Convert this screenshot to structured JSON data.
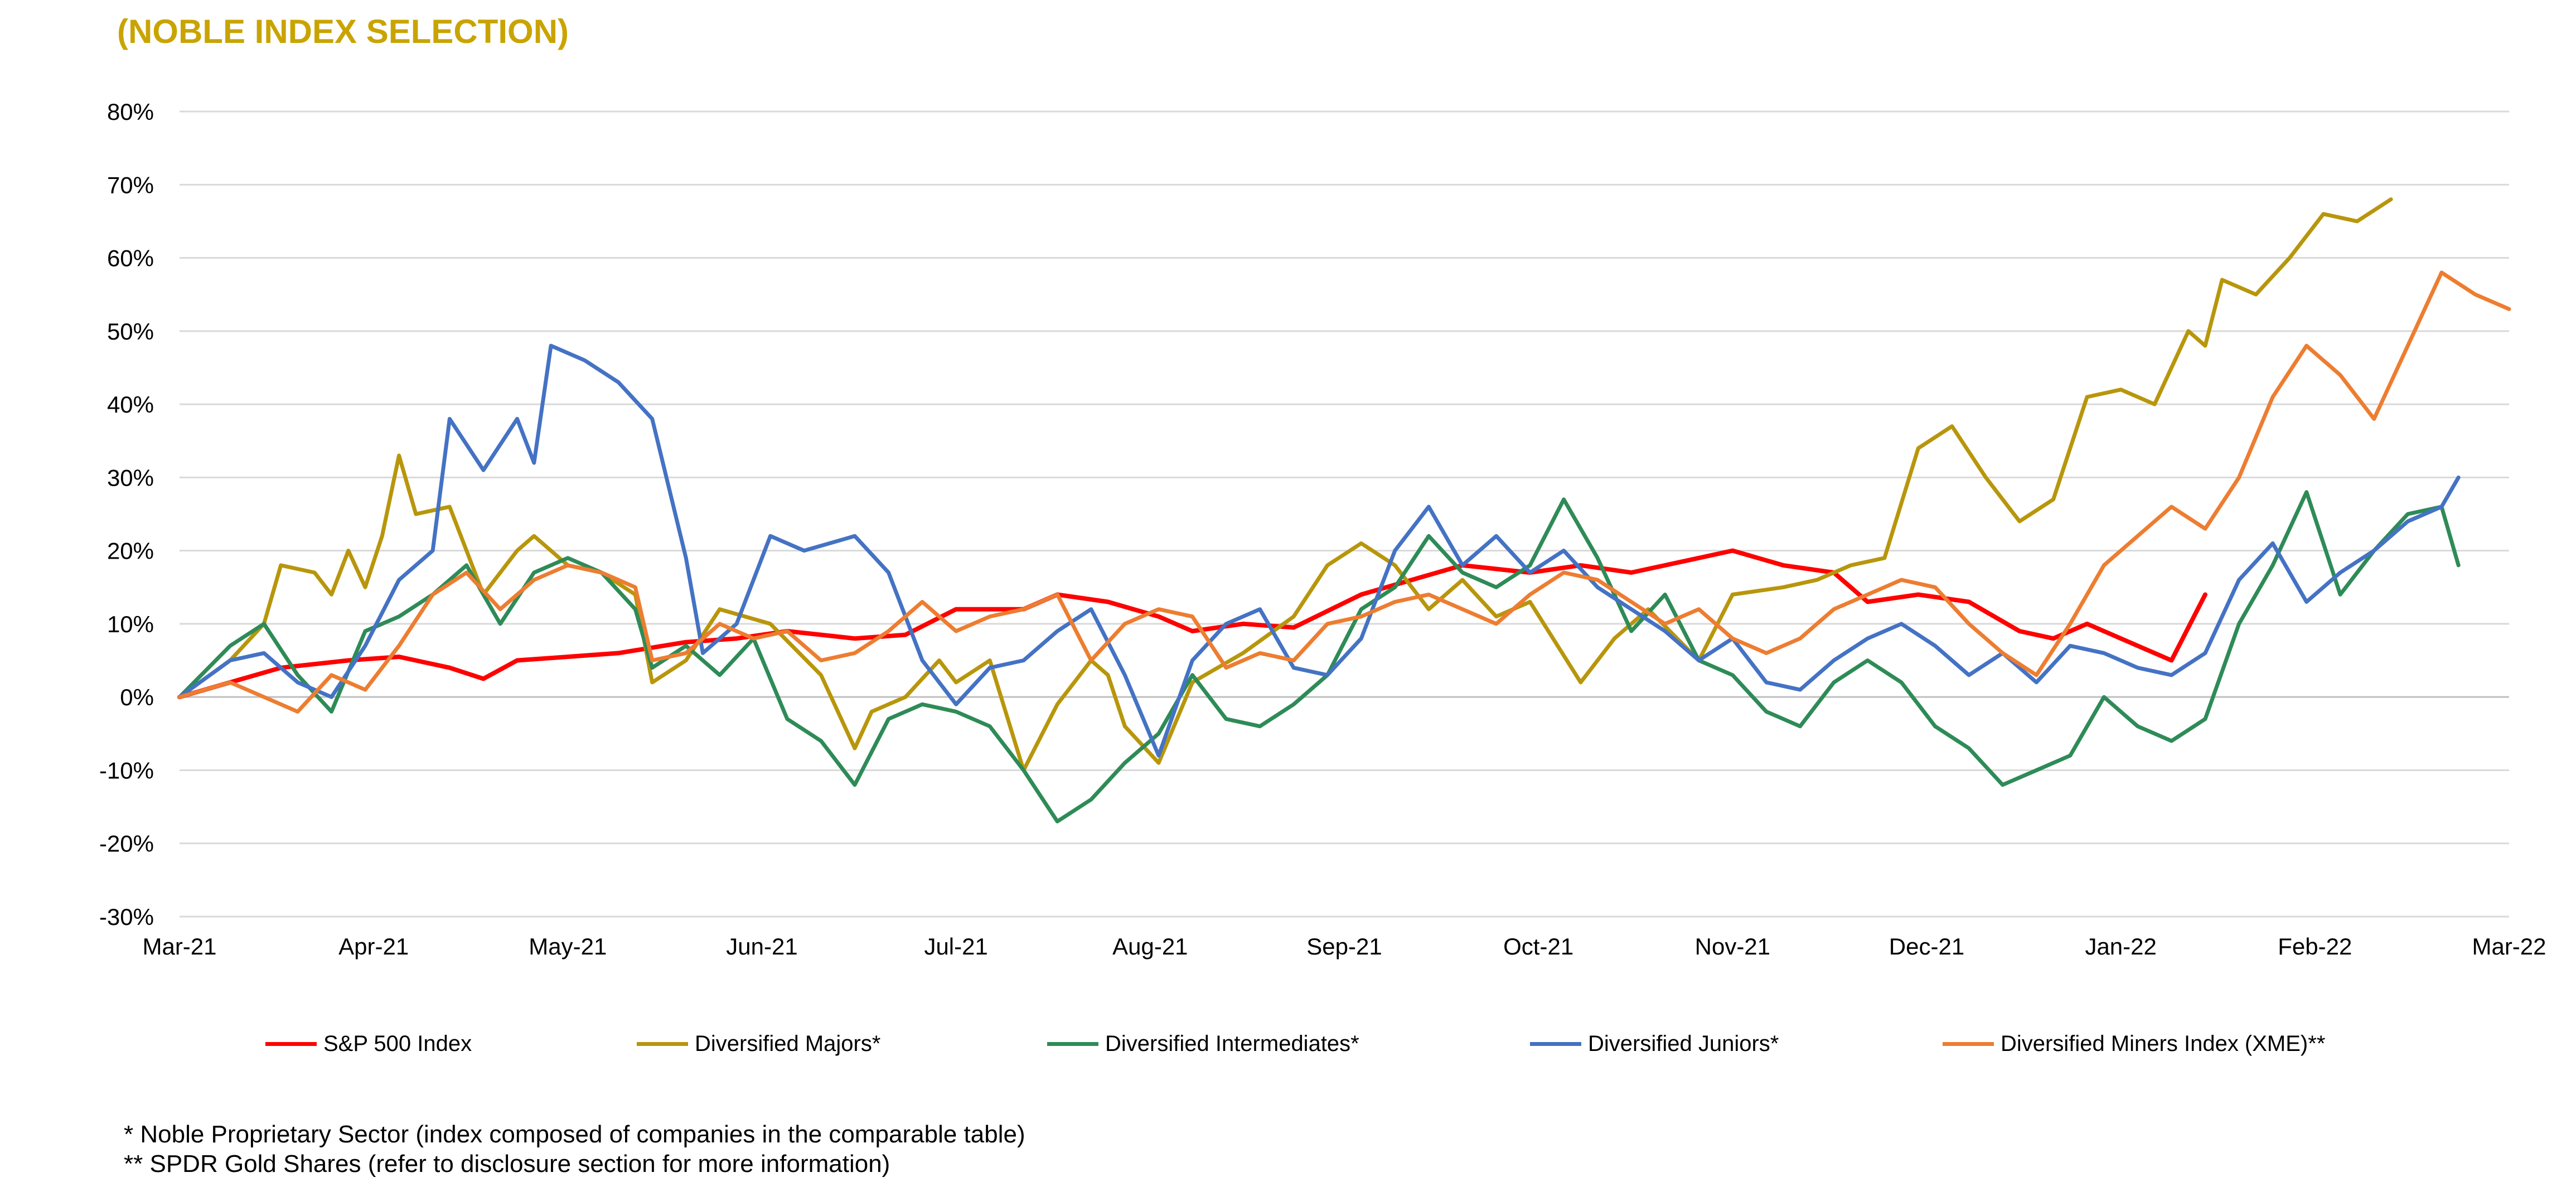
{
  "title": "(NOBLE INDEX SELECTION)",
  "colors": {
    "title": "#C9A400",
    "grid": "#D9D9D9",
    "axis_text": "#000000"
  },
  "footnotes": [
    "* Noble Proprietary Sector (index composed of companies in the comparable table)",
    "** SPDR Gold Shares (refer to disclosure section for more information)"
  ],
  "chart_data": {
    "type": "line",
    "title": "(NOBLE INDEX SELECTION)",
    "xlabel": "",
    "ylabel": "",
    "x_ticks": [
      "Mar-21",
      "Apr-21",
      "May-21",
      "Jun-21",
      "Jul-21",
      "Aug-21",
      "Sep-21",
      "Oct-21",
      "Nov-21",
      "Dec-21",
      "Jan-22",
      "Feb-22",
      "Mar-22"
    ],
    "y_ticks": [
      "80%",
      "70%",
      "60%",
      "50%",
      "40%",
      "30%",
      "20%",
      "10%",
      "0%",
      "-10%",
      "-20%",
      "-30%"
    ],
    "ylim": [
      -30,
      80
    ],
    "y_unit": "%",
    "grid": true,
    "legend_position": "bottom",
    "x_index_note": "x is month index from Mar-21 (0) to Mar-22 (12)",
    "series": [
      {
        "name": "S&P 500 Index",
        "color": "#FF0000",
        "points": [
          [
            0,
            0
          ],
          [
            0.3,
            2
          ],
          [
            0.6,
            4
          ],
          [
            1.0,
            5
          ],
          [
            1.3,
            5.5
          ],
          [
            1.6,
            4
          ],
          [
            1.8,
            2.5
          ],
          [
            2.0,
            5
          ],
          [
            2.3,
            5.5
          ],
          [
            2.6,
            6
          ],
          [
            3.0,
            7.5
          ],
          [
            3.3,
            8
          ],
          [
            3.6,
            9
          ],
          [
            4.0,
            8
          ],
          [
            4.3,
            8.5
          ],
          [
            4.6,
            12
          ],
          [
            5.0,
            12
          ],
          [
            5.2,
            14
          ],
          [
            5.5,
            13
          ],
          [
            5.8,
            11
          ],
          [
            6.0,
            9
          ],
          [
            6.3,
            10
          ],
          [
            6.6,
            9.5
          ],
          [
            7.0,
            14
          ],
          [
            7.3,
            16
          ],
          [
            7.6,
            18
          ],
          [
            8.0,
            17
          ],
          [
            8.3,
            18
          ],
          [
            8.6,
            17
          ],
          [
            9.0,
            19
          ],
          [
            9.2,
            20
          ],
          [
            9.5,
            18
          ],
          [
            9.8,
            17
          ],
          [
            10.0,
            13
          ],
          [
            10.3,
            14
          ],
          [
            10.6,
            13
          ],
          [
            10.9,
            9
          ],
          [
            11.1,
            8
          ],
          [
            11.3,
            10
          ],
          [
            11.6,
            7
          ],
          [
            11.8,
            5
          ],
          [
            12.0,
            14
          ]
        ]
      },
      {
        "name": "Diversified Majors*",
        "color": "#B8960C",
        "points": [
          [
            0,
            0
          ],
          [
            0.3,
            5
          ],
          [
            0.5,
            10
          ],
          [
            0.6,
            18
          ],
          [
            0.8,
            17
          ],
          [
            0.9,
            14
          ],
          [
            1.0,
            20
          ],
          [
            1.1,
            15
          ],
          [
            1.2,
            22
          ],
          [
            1.3,
            33
          ],
          [
            1.4,
            25
          ],
          [
            1.6,
            26
          ],
          [
            1.8,
            14
          ],
          [
            2.0,
            20
          ],
          [
            2.1,
            22
          ],
          [
            2.3,
            18
          ],
          [
            2.5,
            17
          ],
          [
            2.7,
            14
          ],
          [
            2.8,
            2
          ],
          [
            3.0,
            5
          ],
          [
            3.2,
            12
          ],
          [
            3.5,
            10
          ],
          [
            3.8,
            3
          ],
          [
            4.0,
            -7
          ],
          [
            4.1,
            -2
          ],
          [
            4.3,
            0
          ],
          [
            4.5,
            5
          ],
          [
            4.6,
            2
          ],
          [
            4.8,
            5
          ],
          [
            5.0,
            -10
          ],
          [
            5.2,
            -1
          ],
          [
            5.4,
            5
          ],
          [
            5.5,
            3
          ],
          [
            5.6,
            -4
          ],
          [
            5.8,
            -9
          ],
          [
            6.0,
            2
          ],
          [
            6.3,
            6
          ],
          [
            6.6,
            11
          ],
          [
            6.8,
            18
          ],
          [
            7.0,
            21
          ],
          [
            7.2,
            18
          ],
          [
            7.4,
            12
          ],
          [
            7.6,
            16
          ],
          [
            7.8,
            11
          ],
          [
            8.0,
            13
          ],
          [
            8.3,
            2
          ],
          [
            8.5,
            8
          ],
          [
            8.7,
            12
          ],
          [
            9.0,
            5
          ],
          [
            9.2,
            14
          ],
          [
            9.5,
            15
          ],
          [
            9.7,
            16
          ],
          [
            9.9,
            18
          ],
          [
            10.1,
            19
          ],
          [
            10.3,
            34
          ],
          [
            10.5,
            37
          ],
          [
            10.7,
            30
          ],
          [
            10.9,
            24
          ],
          [
            11.1,
            27
          ],
          [
            11.3,
            41
          ],
          [
            11.5,
            42
          ],
          [
            11.7,
            40
          ],
          [
            11.9,
            50
          ],
          [
            12.0,
            48
          ],
          [
            12.1,
            57
          ],
          [
            12.3,
            55
          ],
          [
            12.5,
            60
          ],
          [
            12.7,
            66
          ],
          [
            12.9,
            65
          ],
          [
            13.1,
            68
          ]
        ]
      },
      {
        "name": "Diversified Intermediates*",
        "color": "#2E8B57",
        "points": [
          [
            0,
            0
          ],
          [
            0.3,
            7
          ],
          [
            0.5,
            10
          ],
          [
            0.7,
            3
          ],
          [
            0.9,
            -2
          ],
          [
            1.1,
            9
          ],
          [
            1.3,
            11
          ],
          [
            1.5,
            14
          ],
          [
            1.7,
            18
          ],
          [
            1.9,
            10
          ],
          [
            2.1,
            17
          ],
          [
            2.3,
            19
          ],
          [
            2.5,
            17
          ],
          [
            2.7,
            12
          ],
          [
            2.8,
            4
          ],
          [
            3.0,
            7
          ],
          [
            3.2,
            3
          ],
          [
            3.4,
            8
          ],
          [
            3.6,
            -3
          ],
          [
            3.8,
            -6
          ],
          [
            4.0,
            -12
          ],
          [
            4.2,
            -3
          ],
          [
            4.4,
            -1
          ],
          [
            4.6,
            -2
          ],
          [
            4.8,
            -4
          ],
          [
            5.0,
            -10
          ],
          [
            5.2,
            -17
          ],
          [
            5.4,
            -14
          ],
          [
            5.6,
            -9
          ],
          [
            5.8,
            -5
          ],
          [
            6.0,
            3
          ],
          [
            6.2,
            -3
          ],
          [
            6.4,
            -4
          ],
          [
            6.6,
            -1
          ],
          [
            6.8,
            3
          ],
          [
            7.0,
            12
          ],
          [
            7.2,
            15
          ],
          [
            7.4,
            22
          ],
          [
            7.6,
            17
          ],
          [
            7.8,
            15
          ],
          [
            8.0,
            18
          ],
          [
            8.2,
            27
          ],
          [
            8.4,
            19
          ],
          [
            8.6,
            9
          ],
          [
            8.8,
            14
          ],
          [
            9.0,
            5
          ],
          [
            9.2,
            3
          ],
          [
            9.4,
            -2
          ],
          [
            9.6,
            -4
          ],
          [
            9.8,
            2
          ],
          [
            10.0,
            5
          ],
          [
            10.2,
            2
          ],
          [
            10.4,
            -4
          ],
          [
            10.6,
            -7
          ],
          [
            10.8,
            -12
          ],
          [
            11.0,
            -10
          ],
          [
            11.2,
            -8
          ],
          [
            11.4,
            0
          ],
          [
            11.6,
            -4
          ],
          [
            11.8,
            -6
          ],
          [
            12.0,
            -3
          ],
          [
            12.2,
            10
          ],
          [
            12.4,
            18
          ],
          [
            12.6,
            28
          ],
          [
            12.8,
            14
          ],
          [
            13.0,
            20
          ],
          [
            13.2,
            25
          ],
          [
            13.4,
            26
          ],
          [
            13.5,
            18
          ]
        ]
      },
      {
        "name": "Diversified Juniors*",
        "color": "#4472C4",
        "points": [
          [
            0,
            0
          ],
          [
            0.3,
            5
          ],
          [
            0.5,
            6
          ],
          [
            0.7,
            2
          ],
          [
            0.9,
            0
          ],
          [
            1.1,
            7
          ],
          [
            1.3,
            16
          ],
          [
            1.5,
            20
          ],
          [
            1.6,
            38
          ],
          [
            1.8,
            31
          ],
          [
            2.0,
            38
          ],
          [
            2.1,
            32
          ],
          [
            2.2,
            48
          ],
          [
            2.4,
            46
          ],
          [
            2.6,
            43
          ],
          [
            2.8,
            38
          ],
          [
            3.0,
            19
          ],
          [
            3.1,
            6
          ],
          [
            3.3,
            10
          ],
          [
            3.5,
            22
          ],
          [
            3.7,
            20
          ],
          [
            4.0,
            22
          ],
          [
            4.2,
            17
          ],
          [
            4.4,
            5
          ],
          [
            4.6,
            -1
          ],
          [
            4.8,
            4
          ],
          [
            5.0,
            5
          ],
          [
            5.2,
            9
          ],
          [
            5.4,
            12
          ],
          [
            5.6,
            3
          ],
          [
            5.8,
            -8
          ],
          [
            6.0,
            5
          ],
          [
            6.2,
            10
          ],
          [
            6.4,
            12
          ],
          [
            6.6,
            4
          ],
          [
            6.8,
            3
          ],
          [
            7.0,
            8
          ],
          [
            7.2,
            20
          ],
          [
            7.4,
            26
          ],
          [
            7.6,
            18
          ],
          [
            7.8,
            22
          ],
          [
            8.0,
            17
          ],
          [
            8.2,
            20
          ],
          [
            8.4,
            15
          ],
          [
            8.6,
            12
          ],
          [
            8.8,
            9
          ],
          [
            9.0,
            5
          ],
          [
            9.2,
            8
          ],
          [
            9.4,
            2
          ],
          [
            9.6,
            1
          ],
          [
            9.8,
            5
          ],
          [
            10.0,
            8
          ],
          [
            10.2,
            10
          ],
          [
            10.4,
            7
          ],
          [
            10.6,
            3
          ],
          [
            10.8,
            6
          ],
          [
            11.0,
            2
          ],
          [
            11.2,
            7
          ],
          [
            11.4,
            6
          ],
          [
            11.6,
            4
          ],
          [
            11.8,
            3
          ],
          [
            12.0,
            6
          ],
          [
            12.2,
            16
          ],
          [
            12.4,
            21
          ],
          [
            12.6,
            13
          ],
          [
            12.8,
            17
          ],
          [
            13.0,
            20
          ],
          [
            13.2,
            24
          ],
          [
            13.4,
            26
          ],
          [
            13.5,
            30
          ]
        ]
      },
      {
        "name": "Diversified Miners Index (XME)**",
        "color": "#ED7D31",
        "points": [
          [
            0,
            0
          ],
          [
            0.3,
            2
          ],
          [
            0.5,
            0
          ],
          [
            0.7,
            -2
          ],
          [
            0.9,
            3
          ],
          [
            1.1,
            1
          ],
          [
            1.3,
            7
          ],
          [
            1.5,
            14
          ],
          [
            1.7,
            17
          ],
          [
            1.9,
            12
          ],
          [
            2.1,
            16
          ],
          [
            2.3,
            18
          ],
          [
            2.5,
            17
          ],
          [
            2.7,
            15
          ],
          [
            2.8,
            5
          ],
          [
            3.0,
            6
          ],
          [
            3.2,
            10
          ],
          [
            3.4,
            8
          ],
          [
            3.6,
            9
          ],
          [
            3.8,
            5
          ],
          [
            4.0,
            6
          ],
          [
            4.2,
            9
          ],
          [
            4.4,
            13
          ],
          [
            4.6,
            9
          ],
          [
            4.8,
            11
          ],
          [
            5.0,
            12
          ],
          [
            5.2,
            14
          ],
          [
            5.4,
            5
          ],
          [
            5.6,
            10
          ],
          [
            5.8,
            12
          ],
          [
            6.0,
            11
          ],
          [
            6.2,
            4
          ],
          [
            6.4,
            6
          ],
          [
            6.6,
            5
          ],
          [
            6.8,
            10
          ],
          [
            7.0,
            11
          ],
          [
            7.2,
            13
          ],
          [
            7.4,
            14
          ],
          [
            7.6,
            12
          ],
          [
            7.8,
            10
          ],
          [
            8.0,
            14
          ],
          [
            8.2,
            17
          ],
          [
            8.4,
            16
          ],
          [
            8.6,
            13
          ],
          [
            8.8,
            10
          ],
          [
            9.0,
            12
          ],
          [
            9.2,
            8
          ],
          [
            9.4,
            6
          ],
          [
            9.6,
            8
          ],
          [
            9.8,
            12
          ],
          [
            10.0,
            14
          ],
          [
            10.2,
            16
          ],
          [
            10.4,
            15
          ],
          [
            10.6,
            10
          ],
          [
            10.8,
            6
          ],
          [
            11.0,
            3
          ],
          [
            11.2,
            10
          ],
          [
            11.4,
            18
          ],
          [
            11.6,
            22
          ],
          [
            11.8,
            26
          ],
          [
            12.0,
            23
          ],
          [
            12.2,
            30
          ],
          [
            12.4,
            41
          ],
          [
            12.6,
            48
          ],
          [
            12.8,
            44
          ],
          [
            13.0,
            38
          ],
          [
            13.2,
            48
          ],
          [
            13.4,
            58
          ],
          [
            13.6,
            55
          ],
          [
            13.8,
            53
          ]
        ]
      }
    ]
  }
}
